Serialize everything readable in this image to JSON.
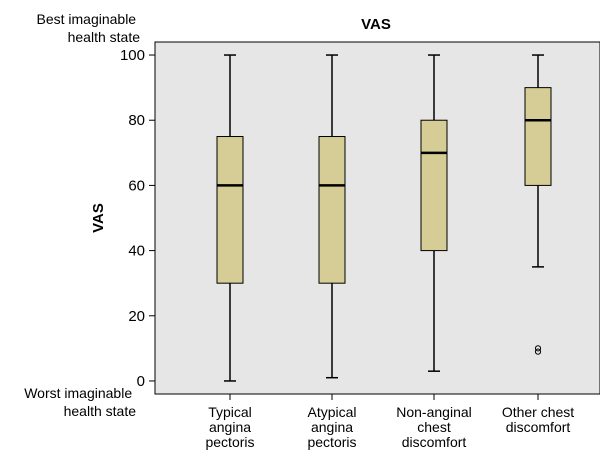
{
  "chart_data": {
    "type": "boxplot",
    "title": "VAS",
    "ylabel": "VAS",
    "xlabel": "",
    "ylim": [
      -4,
      104
    ],
    "yticks": [
      0,
      20,
      40,
      60,
      80,
      100
    ],
    "ytick_labels": [
      "0",
      "20",
      "40",
      "60",
      "80",
      "100"
    ],
    "grid": false,
    "plot_background": "#e6e6e6",
    "box_fill": "#d5cd95",
    "top_annotation": [
      "Best imaginable",
      "health state"
    ],
    "bottom_annotation": [
      "Worst imaginable",
      "health state"
    ],
    "categories": [
      [
        "Typical",
        "angina",
        "pectoris"
      ],
      [
        "Atypical",
        "angina",
        "pectoris"
      ],
      [
        "Non-anginal",
        "chest",
        "discomfort"
      ],
      [
        "Other chest",
        "discomfort"
      ]
    ],
    "boxes": [
      {
        "min": 0,
        "q1": 30,
        "median": 60,
        "q3": 75,
        "max": 100,
        "outliers": []
      },
      {
        "min": 1,
        "q1": 30,
        "median": 60,
        "q3": 75,
        "max": 100,
        "outliers": []
      },
      {
        "min": 3,
        "q1": 40,
        "median": 70,
        "q3": 80,
        "max": 100,
        "outliers": []
      },
      {
        "min": 35,
        "q1": 60,
        "median": 80,
        "q3": 90,
        "max": 100,
        "outliers": [
          10,
          9
        ]
      }
    ]
  }
}
